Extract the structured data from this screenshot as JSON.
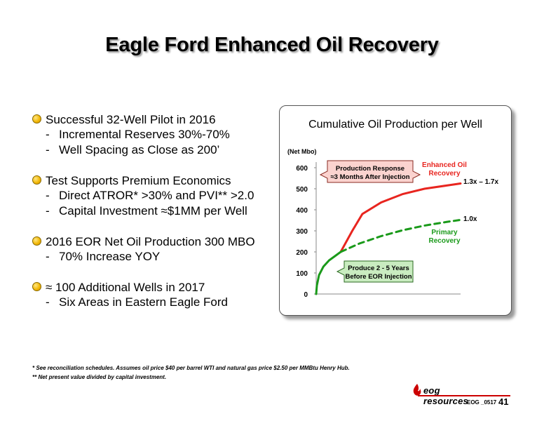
{
  "slide": {
    "title": "Eagle Ford Enhanced Oil Recovery",
    "bullets": [
      {
        "main": "Successful 32-Well Pilot in 2016",
        "subs": [
          "Incremental Reserves 30%-70%",
          "Well Spacing as Close as 200’"
        ]
      },
      {
        "main": "Test Supports Premium Economics",
        "subs": [
          "Direct ATROR* >30% and PVI** >2.0",
          "Capital Investment ≈$1MM per Well"
        ]
      },
      {
        "main": "2016 EOR Net Oil Production 300 MBO",
        "subs": [
          "70% Increase YOY"
        ]
      },
      {
        "main": "≈ 100 Additional Wells in 2017",
        "subs": [
          "Six Areas in Eastern Eagle Ford"
        ]
      }
    ],
    "footnotes": [
      "* See reconciliation schedules. Assumes oil price $40 per barrel WTI and natural gas price $2.50 per MMBtu Henry Hub.",
      "** Net present value divided by capital investment."
    ],
    "logo_text": "eog resources",
    "page_code": "EOG _0517",
    "page_number": "41",
    "colors": {
      "bullet_dot": "#f0b400",
      "footer_line": "#cc0000"
    }
  },
  "chart_data": {
    "type": "line",
    "title": "Cumulative Oil Production per Well",
    "ylabel": "(Net Mbo)",
    "ylim": [
      0,
      600
    ],
    "yticks": [
      "0",
      "100",
      "200",
      "300",
      "400",
      "500",
      "600"
    ],
    "series": [
      {
        "name": "Enhanced Oil Recovery",
        "label_lines": [
          "Enhanced Oil",
          "Recovery"
        ],
        "color": "#e8251f",
        "style": "solid",
        "points": [
          [
            0.17,
            200
          ],
          [
            0.25,
            300
          ],
          [
            0.32,
            380
          ],
          [
            0.45,
            435
          ],
          [
            0.6,
            475
          ],
          [
            0.75,
            500
          ],
          [
            0.9,
            515
          ],
          [
            1.0,
            525
          ]
        ]
      },
      {
        "name": "Primary Recovery",
        "label_lines": [
          "Primary",
          "Recovery"
        ],
        "color": "#1a9a1a",
        "style": "dashed",
        "points": [
          [
            0.17,
            200
          ],
          [
            0.3,
            240
          ],
          [
            0.45,
            275
          ],
          [
            0.6,
            303
          ],
          [
            0.75,
            325
          ],
          [
            0.9,
            342
          ],
          [
            1.0,
            352
          ]
        ]
      },
      {
        "name": "shared",
        "color": "#1a9a1a",
        "style": "solid",
        "points": [
          [
            0.0,
            0
          ],
          [
            0.005,
            40
          ],
          [
            0.02,
            90
          ],
          [
            0.05,
            130
          ],
          [
            0.09,
            160
          ],
          [
            0.13,
            180
          ],
          [
            0.17,
            200
          ]
        ]
      }
    ],
    "annotations": {
      "enhanced_multiple": "1.3x – 1.7x",
      "primary_multiple": "1.0x",
      "response_box": [
        "Production Response",
        "≈3 Months After Injection"
      ],
      "produce_box": [
        "Produce 2 - 5 Years",
        "Before EOR Injection"
      ]
    },
    "annotation_colors": {
      "response_box": "#fbd3cf",
      "produce_box": "#c9ecc0"
    },
    "grid": false,
    "legend": "inline labels"
  }
}
